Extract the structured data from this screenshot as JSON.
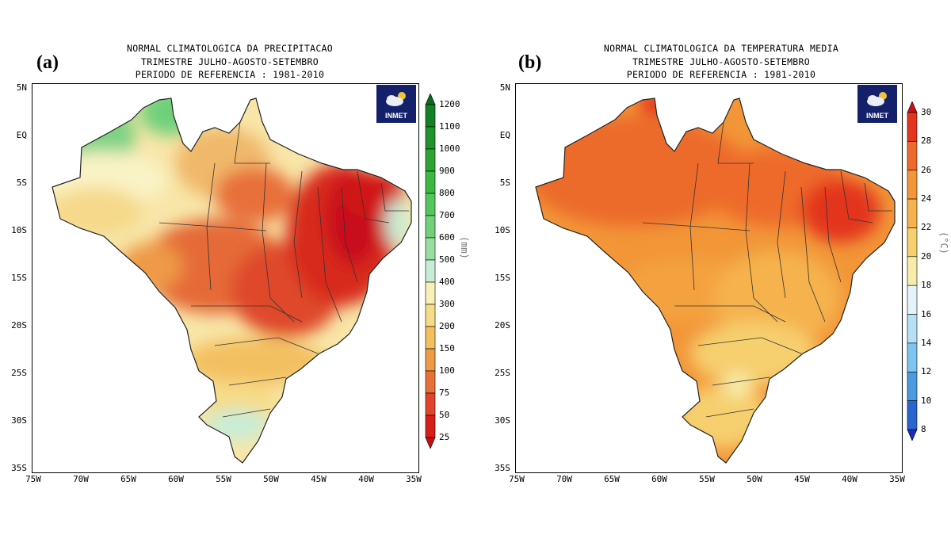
{
  "panels": [
    {
      "label": "(a)",
      "title": [
        "NORMAL CLIMATOLOGICA DA PRECIPITACAO",
        "TRIMESTRE JULHO-AGOSTO-SETEMBRO",
        "PERIODO DE REFERENCIA : 1981-2010"
      ],
      "logo_text": "INMET",
      "unit": "(mm)",
      "colorbar": {
        "labels": [
          "1200",
          "1100",
          "1000",
          "900",
          "800",
          "700",
          "600",
          "500",
          "400",
          "300",
          "200",
          "150",
          "100",
          "75",
          "50",
          "25"
        ],
        "colors": [
          "#0a6a1e",
          "#157f25",
          "#22932c",
          "#2fa434",
          "#3db842",
          "#55c65b",
          "#72d178",
          "#98dea0",
          "#c7edd7",
          "#f8f0b8",
          "#f6dc88",
          "#f3c060",
          "#ee9a47",
          "#e8703a",
          "#e0452c",
          "#d81e1a",
          "#c40e10"
        ]
      }
    },
    {
      "label": "(b)",
      "title": [
        "NORMAL CLIMATOLOGICA DA TEMPERATURA MEDIA",
        "TRIMESTRE JULHO-AGOSTO-SETEMBRO",
        "PERIODO DE REFERENCIA : 1981-2010"
      ],
      "logo_text": "INMET",
      "unit": "(°C)",
      "colorbar": {
        "labels": [
          "30",
          "28",
          "26",
          "24",
          "22",
          "20",
          "18",
          "16",
          "14",
          "12",
          "10",
          "8"
        ],
        "colors": [
          "#c8101a",
          "#e3361e",
          "#ee6a2c",
          "#f29638",
          "#f5b24e",
          "#f6cf6e",
          "#f8ecaa",
          "#e4f4fb",
          "#b5e0f5",
          "#7ec4ee",
          "#4a9be0",
          "#2a66cf",
          "#1a2cbd"
        ]
      }
    }
  ],
  "axes": {
    "lat_labels": [
      "5N",
      "EQ",
      "5S",
      "10S",
      "15S",
      "20S",
      "25S",
      "30S",
      "35S"
    ],
    "lon_labels": [
      "75W",
      "70W",
      "65W",
      "60W",
      "55W",
      "50W",
      "45W",
      "40W",
      "35W"
    ]
  }
}
